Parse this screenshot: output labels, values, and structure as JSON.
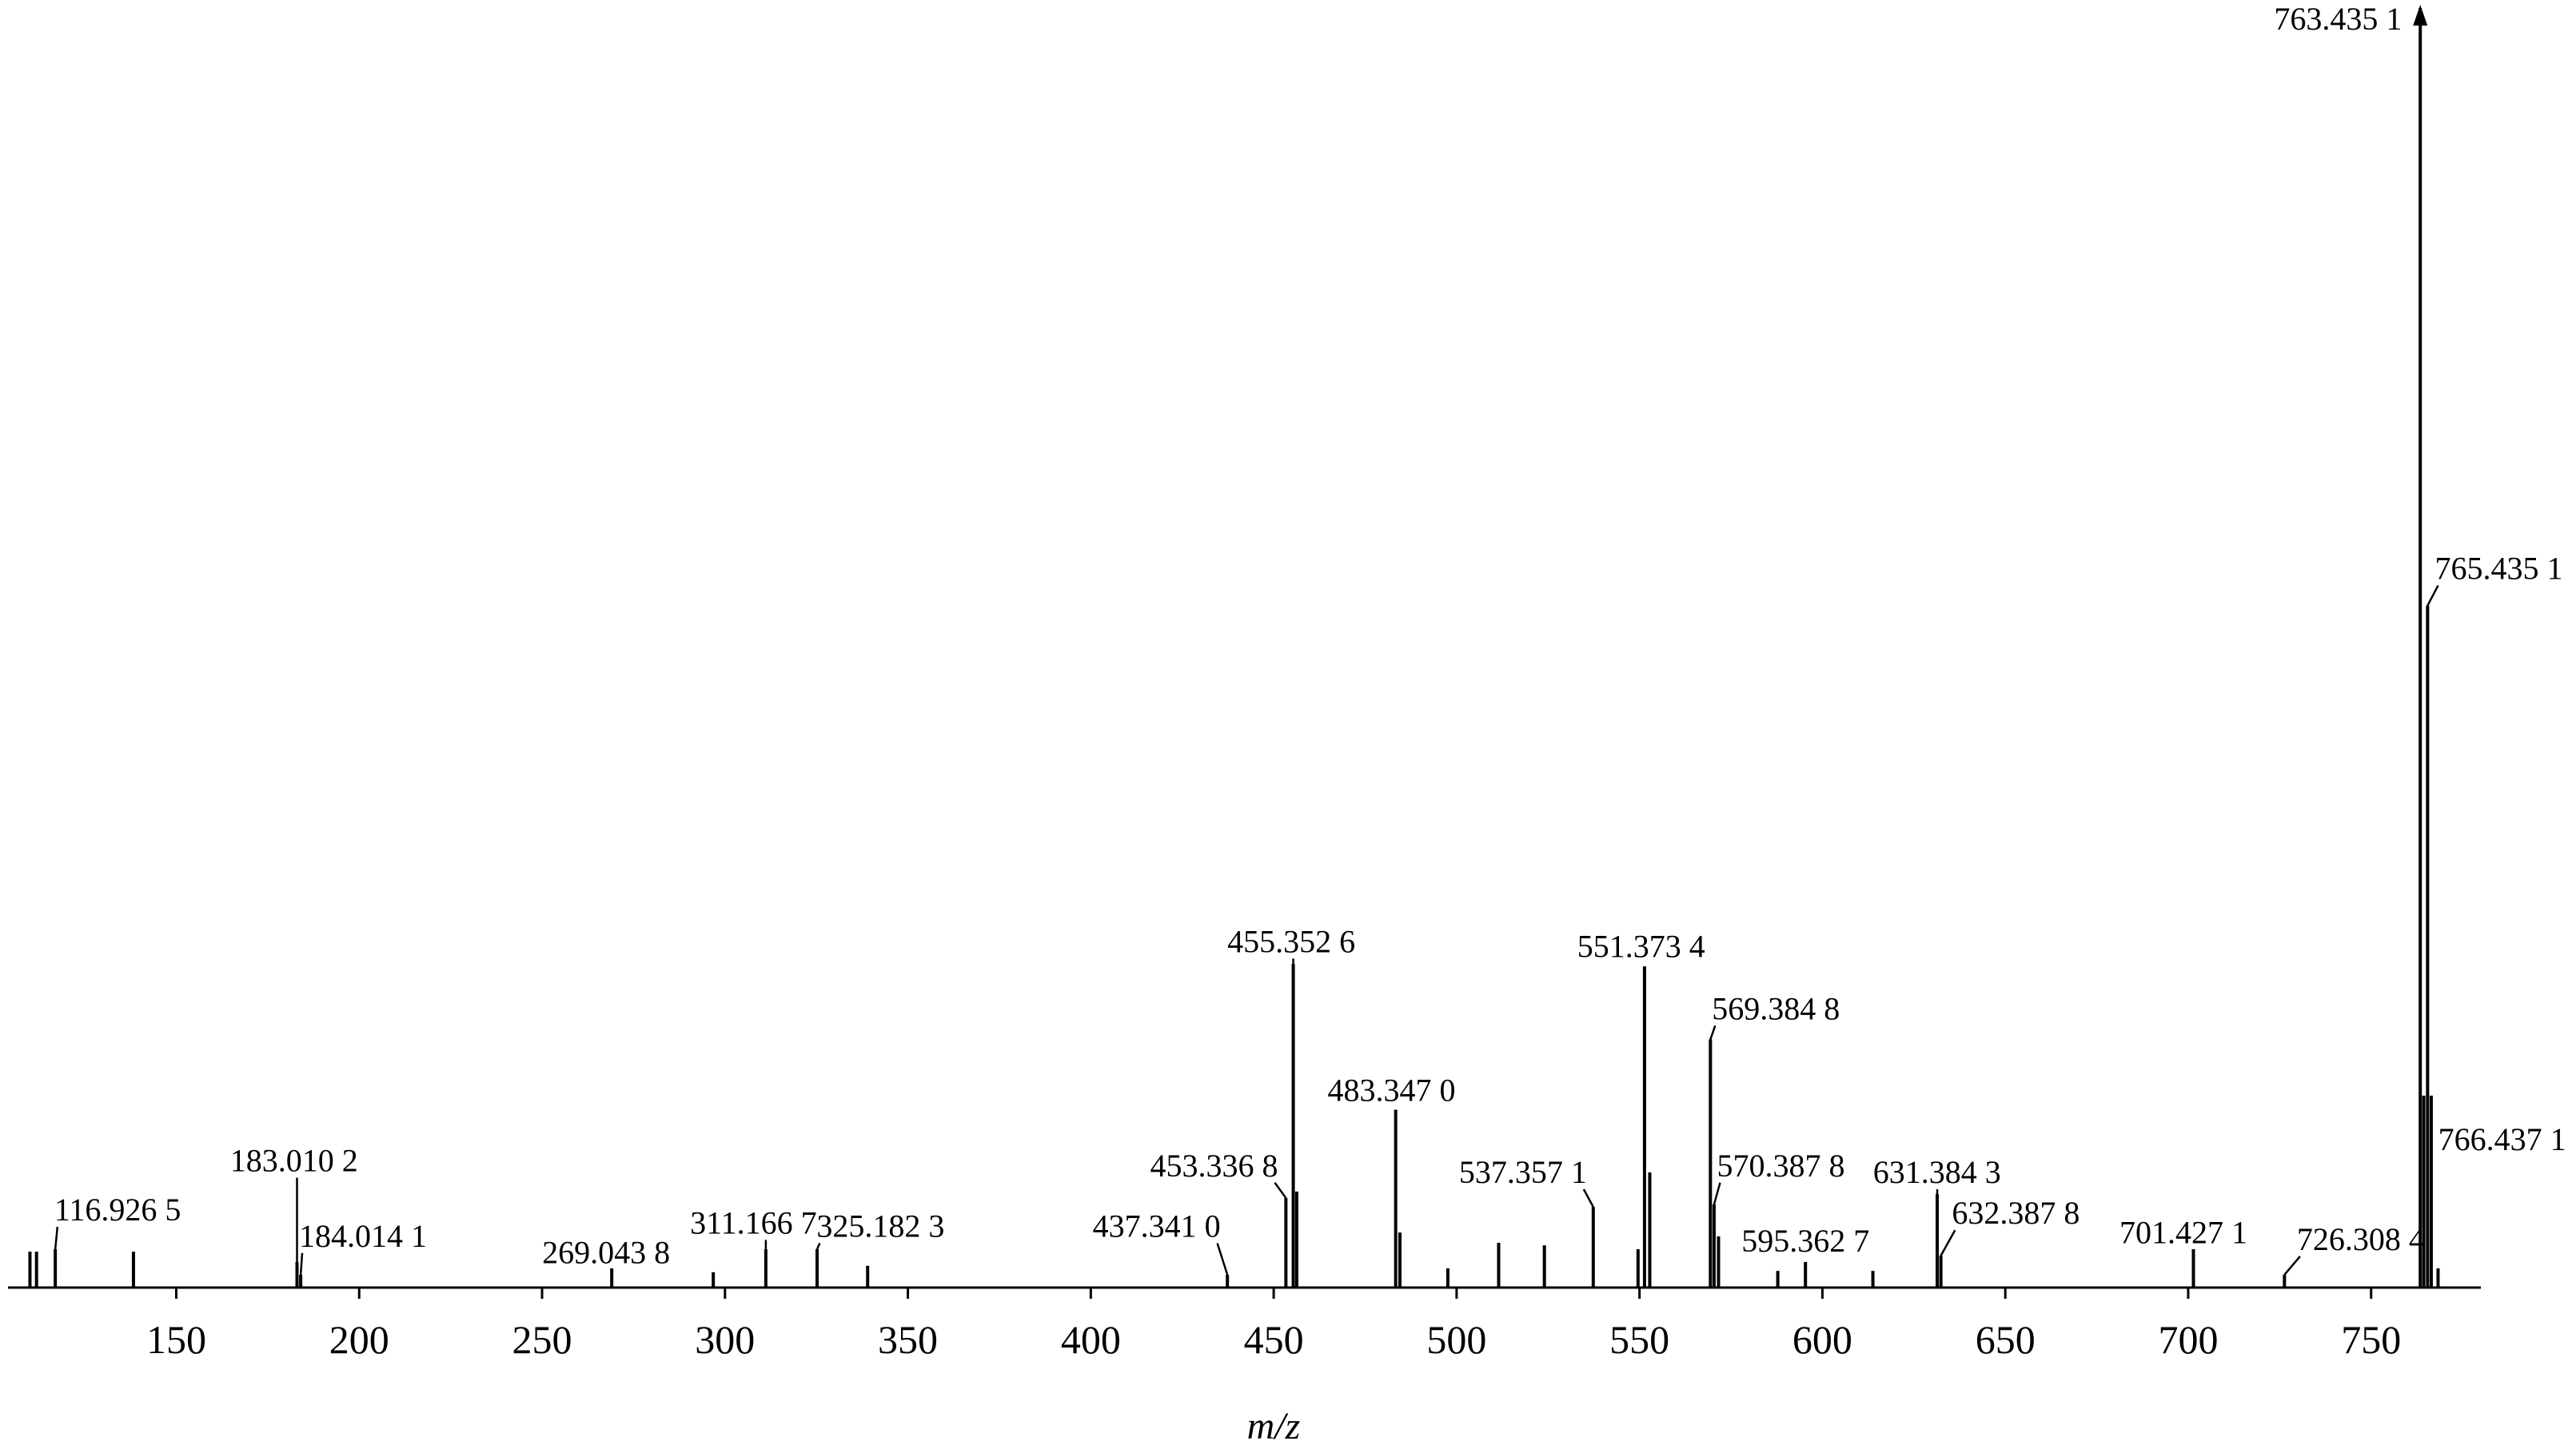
{
  "chart_data": {
    "type": "stem",
    "x_label": "m/z",
    "x": [
      110.0,
      111.8,
      116.9265,
      138.3,
      183.0102,
      184.0141,
      269.0438,
      296.8,
      311.1667,
      325.1823,
      339.0,
      437.341,
      453.3368,
      455.3526,
      456.3,
      483.347,
      484.5,
      497.6,
      511.5,
      524.0,
      537.3571,
      549.6,
      551.3734,
      552.8,
      569.3848,
      570.3878,
      571.6,
      587.8,
      595.3627,
      613.8,
      631.3843,
      632.3878,
      701.4271,
      726.3084,
      763.4351,
      764.4,
      765.4351,
      766.4371,
      768.3
    ],
    "values": [
      2.8,
      2.8,
      3,
      2.8,
      2,
      1,
      1.5,
      1.2,
      3,
      3,
      1.7,
      1,
      7,
      25.3,
      7.5,
      13.9,
      4.3,
      1.5,
      3.5,
      3.3,
      6.3,
      3,
      25.1,
      9,
      19.4,
      6.5,
      4,
      1.3,
      2,
      1.3,
      7.3,
      2.5,
      3,
      1,
      100,
      15,
      53.3,
      15,
      1.5
    ],
    "labels": [
      null,
      null,
      "116.926 5",
      null,
      "183.010 2",
      "184.014 1",
      "269.043 8",
      null,
      "311.166 7",
      "325.182 3",
      null,
      "437.341 0",
      "453.336 8",
      "455.352 6",
      null,
      "483.347 0",
      null,
      null,
      null,
      null,
      "537.357 1",
      null,
      "551.373 4",
      null,
      "569.384 8",
      "570.387 8",
      null,
      null,
      "595.362 7",
      null,
      "631.384 3",
      "632.387 8",
      "701.427 1",
      "726.308 4",
      "763.435 1",
      null,
      "765.435 1",
      "766.437 1",
      null
    ],
    "color": "#000000",
    "xlim": [
      104,
      780
    ],
    "ylim": [
      0,
      100
    ],
    "xticks": [
      150,
      200,
      250,
      300,
      350,
      400,
      450,
      500,
      550,
      600,
      650,
      700,
      750
    ]
  }
}
